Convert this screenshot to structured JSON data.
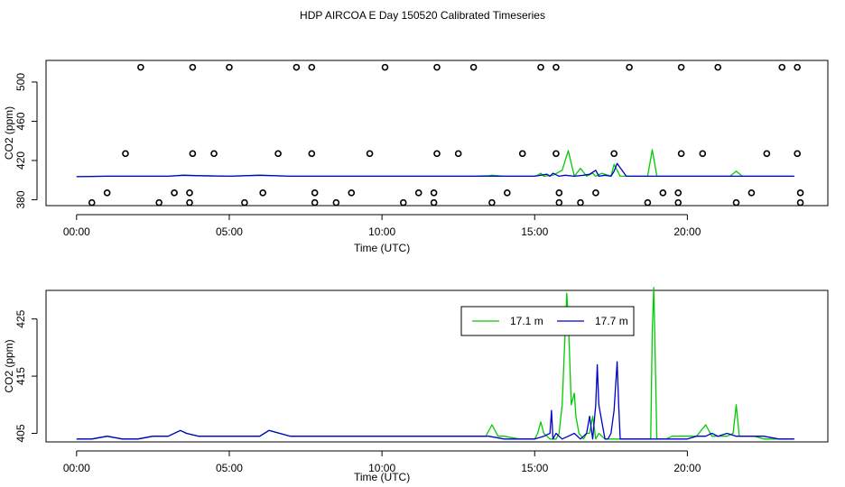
{
  "title": "HDP AIRCOA E  Day 150520  Calibrated Timeseries",
  "colors": {
    "green": "#00cc00",
    "blue": "#0000cc",
    "frame": "#000000"
  },
  "chart_data": [
    {
      "type": "line",
      "xlabel": "Time (UTC)",
      "ylabel": "CO2 (ppm)",
      "xlim": [
        -1.0,
        24.6
      ],
      "ylim": [
        374,
        522
      ],
      "x_ticks": [
        0,
        5,
        10,
        15,
        20
      ],
      "x_tick_labels": [
        "00:00",
        "05:00",
        "10:00",
        "15:00",
        "20:00"
      ],
      "y_ticks": [
        380,
        420,
        460,
        500
      ],
      "y_tick_labels": [
        "380",
        "420",
        "460",
        "500"
      ],
      "scatter_points": [
        {
          "x": 0.5,
          "y": 377
        },
        {
          "x": 1.0,
          "y": 387
        },
        {
          "x": 1.6,
          "y": 427
        },
        {
          "x": 2.1,
          "y": 515
        },
        {
          "x": 2.7,
          "y": 377
        },
        {
          "x": 3.2,
          "y": 387
        },
        {
          "x": 3.7,
          "y": 387
        },
        {
          "x": 3.7,
          "y": 377
        },
        {
          "x": 3.8,
          "y": 427
        },
        {
          "x": 3.8,
          "y": 515
        },
        {
          "x": 4.5,
          "y": 427
        },
        {
          "x": 5.0,
          "y": 515
        },
        {
          "x": 5.5,
          "y": 377
        },
        {
          "x": 6.1,
          "y": 387
        },
        {
          "x": 6.6,
          "y": 427
        },
        {
          "x": 7.2,
          "y": 515
        },
        {
          "x": 7.7,
          "y": 515
        },
        {
          "x": 7.7,
          "y": 427
        },
        {
          "x": 7.8,
          "y": 387
        },
        {
          "x": 7.8,
          "y": 377
        },
        {
          "x": 8.5,
          "y": 377
        },
        {
          "x": 9.0,
          "y": 387
        },
        {
          "x": 9.6,
          "y": 427
        },
        {
          "x": 10.1,
          "y": 515
        },
        {
          "x": 10.7,
          "y": 377
        },
        {
          "x": 11.2,
          "y": 387
        },
        {
          "x": 11.7,
          "y": 387
        },
        {
          "x": 11.7,
          "y": 377
        },
        {
          "x": 11.8,
          "y": 427
        },
        {
          "x": 11.8,
          "y": 515
        },
        {
          "x": 12.5,
          "y": 427
        },
        {
          "x": 13.0,
          "y": 515
        },
        {
          "x": 13.6,
          "y": 377
        },
        {
          "x": 14.1,
          "y": 387
        },
        {
          "x": 14.6,
          "y": 427
        },
        {
          "x": 15.2,
          "y": 515
        },
        {
          "x": 15.7,
          "y": 515
        },
        {
          "x": 15.7,
          "y": 427
        },
        {
          "x": 15.8,
          "y": 387
        },
        {
          "x": 15.8,
          "y": 377
        },
        {
          "x": 16.5,
          "y": 377
        },
        {
          "x": 17.0,
          "y": 387
        },
        {
          "x": 17.6,
          "y": 427
        },
        {
          "x": 18.1,
          "y": 515
        },
        {
          "x": 18.7,
          "y": 377
        },
        {
          "x": 19.2,
          "y": 387
        },
        {
          "x": 19.7,
          "y": 387
        },
        {
          "x": 19.7,
          "y": 377
        },
        {
          "x": 19.8,
          "y": 427
        },
        {
          "x": 19.8,
          "y": 515
        },
        {
          "x": 20.5,
          "y": 427
        },
        {
          "x": 21.0,
          "y": 515
        },
        {
          "x": 21.6,
          "y": 377
        },
        {
          "x": 22.1,
          "y": 387
        },
        {
          "x": 22.6,
          "y": 427
        },
        {
          "x": 23.1,
          "y": 515
        },
        {
          "x": 23.6,
          "y": 515
        },
        {
          "x": 23.6,
          "y": 427
        },
        {
          "x": 23.7,
          "y": 387
        },
        {
          "x": 23.7,
          "y": 377
        }
      ],
      "series": [
        {
          "color": "#00cc00",
          "x": [
            0,
            1,
            2,
            3,
            3.5,
            4,
            5,
            6,
            7,
            8,
            9,
            10,
            11,
            12,
            13,
            13.5,
            13.6,
            14,
            15,
            15.1,
            15.2,
            15.3,
            15.6,
            15.9,
            16.1,
            16.3,
            16.5,
            16.7,
            16.9,
            17.0,
            17.2,
            17.5,
            17.6,
            17.8,
            18.0,
            18.5,
            18.7,
            18.85,
            19.0,
            19.3,
            20.0,
            20.5,
            21.0,
            21.4,
            21.6,
            21.8,
            22.0,
            23.0,
            23.5
          ],
          "y": [
            403.5,
            404,
            404,
            404,
            405,
            404.5,
            404,
            405,
            404,
            404,
            404,
            404,
            404,
            404,
            404,
            404.5,
            405,
            404,
            404,
            405,
            407,
            404,
            405,
            410,
            430,
            404,
            412,
            404,
            407,
            404,
            407,
            404,
            416,
            404,
            404,
            404,
            404,
            431,
            404,
            404,
            404,
            404,
            404,
            404,
            409,
            404,
            404,
            404,
            404
          ]
        },
        {
          "color": "#0000cc",
          "x": [
            0,
            1,
            2,
            3,
            3.5,
            4,
            5,
            6,
            7,
            8,
            9,
            10,
            11,
            12,
            13,
            14,
            15,
            15.4,
            15.5,
            15.6,
            15.8,
            16.0,
            16.3,
            16.6,
            16.8,
            17.0,
            17.1,
            17.3,
            17.5,
            17.6,
            17.7,
            18.0,
            18.5,
            19.0,
            20.0,
            21.0,
            22.0,
            23.0,
            23.5
          ],
          "y": [
            403.5,
            404,
            404,
            404,
            405,
            404.5,
            404,
            405,
            404,
            404,
            404,
            404,
            404,
            404,
            404,
            404,
            404,
            406,
            404,
            407,
            404,
            405,
            404,
            405,
            406,
            410,
            404,
            405,
            404,
            409,
            417,
            404,
            404,
            404,
            404,
            404,
            404,
            404,
            404
          ]
        }
      ]
    },
    {
      "type": "line",
      "xlabel": "Time (UTC)",
      "ylabel": "CO2 (ppm)",
      "xlim": [
        -1.0,
        24.6
      ],
      "ylim": [
        403.5,
        430
      ],
      "x_ticks": [
        0,
        5,
        10,
        15,
        20
      ],
      "x_tick_labels": [
        "00:00",
        "05:00",
        "10:00",
        "15:00",
        "20:00"
      ],
      "y_ticks": [
        405,
        415,
        425
      ],
      "y_tick_labels": [
        "405",
        "415",
        "425"
      ],
      "legend": {
        "position": "top-right"
      },
      "series": [
        {
          "name": "17.1 m",
          "color": "#00cc00",
          "x": [
            0,
            0.5,
            1,
            1.5,
            2,
            2.5,
            3,
            3.4,
            3.6,
            4,
            4.5,
            5,
            5.5,
            6,
            6.3,
            7,
            7.5,
            8,
            8.5,
            9,
            9.5,
            10,
            10.5,
            11,
            11.5,
            12,
            12.5,
            13,
            13.4,
            13.6,
            13.8,
            14,
            14.5,
            15,
            15.1,
            15.2,
            15.3,
            15.5,
            15.6,
            15.7,
            15.8,
            15.9,
            16.0,
            16.05,
            16.1,
            16.2,
            16.3,
            16.35,
            16.45,
            16.6,
            16.7,
            16.8,
            16.9,
            17.0,
            17.1,
            17.3,
            17.5,
            17.6,
            17.7,
            17.8,
            18.0,
            18.3,
            18.6,
            18.8,
            18.85,
            18.9,
            19.0,
            19.3,
            19.5,
            20.0,
            20.3,
            20.6,
            20.8,
            21.0,
            21.3,
            21.5,
            21.6,
            21.7,
            21.9,
            22.2,
            22.5,
            23.0,
            23.5
          ],
          "y": [
            404,
            404,
            404.5,
            404,
            404,
            404.5,
            404.5,
            405.5,
            405,
            404.5,
            404.5,
            404.5,
            404.5,
            404.5,
            405.5,
            404.5,
            404.5,
            404.5,
            404.5,
            404.5,
            404.5,
            404.5,
            404.5,
            404.5,
            404.5,
            404.5,
            404.5,
            404.5,
            404.5,
            406.5,
            404.5,
            404.5,
            404,
            404,
            405,
            407,
            405,
            404,
            404,
            404,
            405,
            410,
            423,
            429.5,
            425,
            410,
            412,
            408,
            405,
            404,
            405,
            405,
            408,
            404,
            405,
            404,
            404,
            404,
            404,
            404,
            404,
            404,
            404,
            404,
            423,
            430.5,
            404,
            404,
            404.5,
            404.5,
            404.5,
            406.5,
            404.5,
            404.5,
            404.5,
            405,
            410,
            404.5,
            404.5,
            404.5,
            404,
            404,
            404
          ]
        },
        {
          "name": "17.7 m",
          "color": "#0000cc",
          "x": [
            0,
            0.5,
            1,
            1.5,
            2,
            2.5,
            3,
            3.4,
            3.6,
            4,
            4.5,
            5,
            5.5,
            6,
            6.3,
            7,
            7.5,
            8,
            8.5,
            9,
            9.5,
            10,
            10.5,
            11,
            11.5,
            12,
            12.5,
            13,
            13.5,
            14,
            14.5,
            15,
            15.3,
            15.5,
            15.55,
            15.6,
            15.7,
            15.9,
            16.1,
            16.3,
            16.5,
            16.7,
            16.8,
            16.9,
            17.0,
            17.05,
            17.1,
            17.3,
            17.4,
            17.5,
            17.6,
            17.7,
            17.75,
            17.8,
            18.0,
            18.5,
            19.0,
            19.5,
            20.0,
            20.3,
            20.6,
            20.8,
            21.0,
            21.3,
            21.6,
            22.0,
            22.5,
            23.0,
            23.5
          ],
          "y": [
            404,
            404,
            404.5,
            404,
            404,
            404.5,
            404.5,
            405.5,
            405,
            404.5,
            404.5,
            404.5,
            404.5,
            404.5,
            405.5,
            404.5,
            404.5,
            404.5,
            404.5,
            404.5,
            404.5,
            404.5,
            404.5,
            404.5,
            404.5,
            404.5,
            404.5,
            404.5,
            404.5,
            404,
            404,
            404,
            404.5,
            405,
            409,
            404,
            405,
            404,
            404.5,
            405,
            404,
            405,
            408,
            404,
            410,
            417,
            410,
            404,
            404,
            405,
            409,
            417.5,
            410,
            404,
            404,
            404,
            404,
            404,
            404,
            404.5,
            404.5,
            405,
            404.5,
            405,
            404.5,
            404.5,
            404.5,
            404,
            404
          ]
        }
      ]
    }
  ]
}
